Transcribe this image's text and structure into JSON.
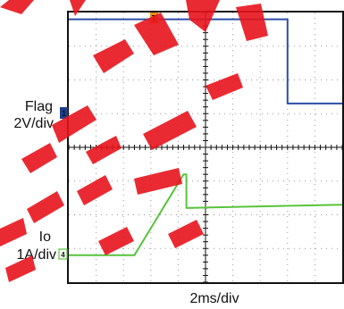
{
  "colors": {
    "flag": "#2b4fa8",
    "io": "#57c43c",
    "trigger": "#f08c1e",
    "ch1_marker": "#1f3f8f",
    "ch4_marker": "#57c43c",
    "grid": "#999999",
    "watermark": "#e8141c",
    "background": "#ffffff"
  },
  "labels": {
    "flag_name": "Flag",
    "flag_scale": "2V/div",
    "io_name": "Io",
    "io_scale": "1A/div",
    "time_scale": "2ms/div",
    "ch1_marker": "1",
    "ch4_marker": "4",
    "trigger_marker": "T"
  },
  "watermark": {
    "text": "REFERENCE"
  },
  "chart_data": {
    "type": "line",
    "xlabel": "2ms/div",
    "xlim": [
      0,
      20
    ],
    "x_unit": "ms",
    "grid": true,
    "grid_divisions": {
      "x": 10,
      "y": 8
    },
    "trigger_ms": 3.8,
    "series": [
      {
        "name": "Flag",
        "scale": "2V/div",
        "points": [
          [
            0,
            7.8
          ],
          [
            16.0,
            7.8
          ],
          [
            16.0,
            5.3
          ],
          [
            20.0,
            5.3
          ]
        ]
      },
      {
        "name": "Io",
        "scale": "1A/div",
        "points": [
          [
            0,
            0.8
          ],
          [
            4.8,
            0.8
          ],
          [
            8.4,
            3.2
          ],
          [
            8.6,
            3.2
          ],
          [
            8.6,
            2.2
          ],
          [
            20.0,
            2.3
          ]
        ]
      }
    ]
  }
}
